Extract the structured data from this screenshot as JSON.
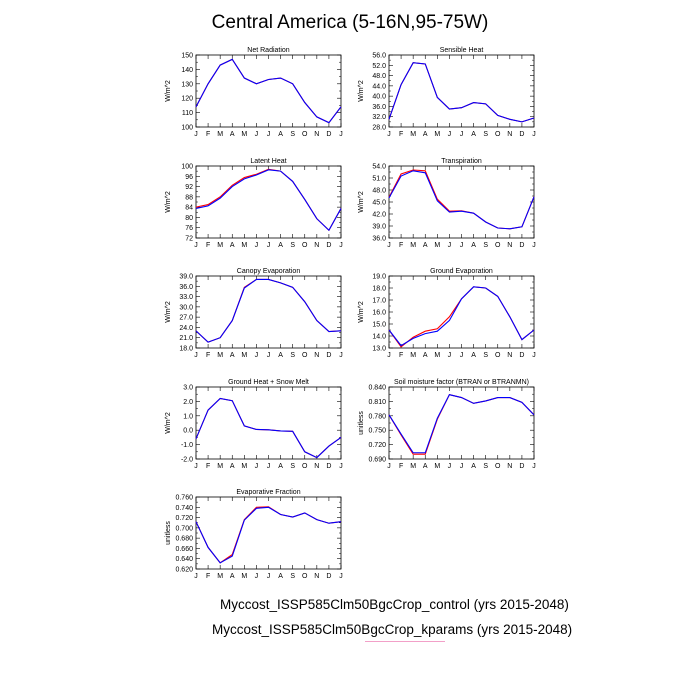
{
  "figure": {
    "title": "Central America (5-16N,95-75W)",
    "legend": [
      {
        "label": "Myccost_ISSP585Clm50BgcCrop_control (yrs 2015-2048)",
        "color": "#0000ff"
      },
      {
        "label": "Myccost_ISSP585Clm50BgcCrop_kparams (yrs 2015-2048)",
        "color": "#ff0000"
      }
    ]
  },
  "chart_data": [
    {
      "type": "line",
      "title": "Net Radiation",
      "ylabel": "W/m^2",
      "categories": [
        "J",
        "F",
        "M",
        "A",
        "M",
        "J",
        "J",
        "A",
        "S",
        "O",
        "N",
        "D",
        "J"
      ],
      "yticks": [
        "100",
        "110",
        "120",
        "130",
        "140",
        "150"
      ],
      "ylim": [
        100,
        150
      ],
      "series": [
        {
          "color": "#0000ff",
          "values": [
            114,
            130,
            143,
            147,
            134,
            130,
            133,
            134,
            130,
            117,
            107,
            103,
            114
          ]
        },
        {
          "color": "#ff0000",
          "values": [
            114,
            130,
            143,
            147,
            134,
            130,
            133,
            134,
            130,
            117,
            107,
            103,
            114
          ]
        }
      ]
    },
    {
      "type": "line",
      "title": "Sensible Heat",
      "ylabel": "W/m^2",
      "categories": [
        "J",
        "F",
        "M",
        "A",
        "M",
        "J",
        "J",
        "A",
        "S",
        "O",
        "N",
        "D",
        "J"
      ],
      "yticks": [
        "28.0",
        "32.0",
        "36.0",
        "40.0",
        "44.0",
        "48.0",
        "52.0",
        "56.0"
      ],
      "ylim": [
        28,
        56
      ],
      "series": [
        {
          "color": "#0000ff",
          "values": [
            31,
            44.5,
            53,
            52.5,
            39.5,
            35,
            35.5,
            37.5,
            37,
            32.5,
            31,
            30,
            31.5
          ]
        },
        {
          "color": "#ff0000",
          "values": [
            31,
            44.5,
            53,
            52.5,
            39.5,
            35,
            35.5,
            37.5,
            37,
            32.5,
            31,
            30,
            31.5
          ]
        }
      ]
    },
    {
      "type": "line",
      "title": "Latent Heat",
      "ylabel": "W/m^2",
      "categories": [
        "J",
        "F",
        "M",
        "A",
        "M",
        "J",
        "J",
        "A",
        "S",
        "O",
        "N",
        "D",
        "J"
      ],
      "yticks": [
        "72",
        "76",
        "80",
        "84",
        "88",
        "92",
        "96",
        "100"
      ],
      "ylim": [
        72,
        100
      ],
      "series": [
        {
          "color": "#0000ff",
          "values": [
            83.5,
            84.5,
            87.5,
            92,
            95,
            96.5,
            98.5,
            98,
            94,
            87,
            79.5,
            75,
            83.5
          ]
        },
        {
          "color": "#ff0000",
          "values": [
            84,
            85,
            88,
            92.5,
            95.5,
            96.8,
            98.7,
            98,
            94,
            87,
            79.5,
            75,
            83.5
          ]
        }
      ]
    },
    {
      "type": "line",
      "title": "Transpiration",
      "ylabel": "W/m^2",
      "categories": [
        "J",
        "F",
        "M",
        "A",
        "M",
        "J",
        "J",
        "A",
        "S",
        "O",
        "N",
        "D",
        "J"
      ],
      "yticks": [
        "36.0",
        "39.0",
        "42.0",
        "45.0",
        "48.0",
        "51.0",
        "54.0"
      ],
      "ylim": [
        36,
        54
      ],
      "series": [
        {
          "color": "#0000ff",
          "values": [
            46,
            51.5,
            52.8,
            52.3,
            45.3,
            42.5,
            42.7,
            42.2,
            40,
            38.5,
            38.3,
            38.8,
            46.3
          ]
        },
        {
          "color": "#ff0000",
          "values": [
            46.2,
            52,
            53,
            52.8,
            45.7,
            42.7,
            42.8,
            42.2,
            40,
            38.5,
            38.3,
            38.8,
            46.3
          ]
        }
      ]
    },
    {
      "type": "line",
      "title": "Canopy Evaporation",
      "ylabel": "W/m^2",
      "categories": [
        "J",
        "F",
        "M",
        "A",
        "M",
        "J",
        "J",
        "A",
        "S",
        "O",
        "N",
        "D",
        "J"
      ],
      "yticks": [
        "18.0",
        "21.0",
        "24.0",
        "27.0",
        "30.0",
        "33.0",
        "36.0",
        "39.0"
      ],
      "ylim": [
        18,
        39
      ],
      "series": [
        {
          "color": "#0000ff",
          "values": [
            23,
            19.7,
            21,
            26,
            35.5,
            38,
            38,
            37,
            35.7,
            31.5,
            26,
            22.8,
            23
          ]
        },
        {
          "color": "#ff0000",
          "values": [
            23,
            19.7,
            21,
            26,
            35.7,
            38,
            38,
            37,
            35.7,
            31.5,
            26,
            22.8,
            23
          ]
        }
      ]
    },
    {
      "type": "line",
      "title": "Ground Evaporation",
      "ylabel": "W/m^2",
      "categories": [
        "J",
        "F",
        "M",
        "A",
        "M",
        "J",
        "J",
        "A",
        "S",
        "O",
        "N",
        "D",
        "J"
      ],
      "yticks": [
        "13.0",
        "14.0",
        "15.0",
        "16.0",
        "17.0",
        "18.0",
        "19.0"
      ],
      "ylim": [
        13,
        19
      ],
      "series": [
        {
          "color": "#0000ff",
          "values": [
            14.5,
            13.2,
            13.8,
            14.2,
            14.4,
            15.3,
            17.1,
            18.1,
            18,
            17.3,
            15.6,
            13.7,
            14.5
          ]
        },
        {
          "color": "#ff0000",
          "values": [
            14.5,
            13.1,
            13.9,
            14.4,
            14.6,
            15.6,
            17.1,
            18.1,
            18,
            17.3,
            15.6,
            13.7,
            14.5
          ]
        }
      ]
    },
    {
      "type": "line",
      "title": "Ground Heat + Snow Melt",
      "ylabel": "W/m^2",
      "categories": [
        "J",
        "F",
        "M",
        "A",
        "M",
        "J",
        "J",
        "A",
        "S",
        "O",
        "N",
        "D",
        "J"
      ],
      "yticks": [
        "-2.0",
        "-1.0",
        "0.0",
        "1.0",
        "2.0",
        "3.0"
      ],
      "ylim": [
        -2,
        3
      ],
      "series": [
        {
          "color": "#0000ff",
          "values": [
            -0.6,
            1.4,
            2.2,
            2.05,
            0.3,
            0.05,
            0.03,
            -0.05,
            -0.08,
            -1.5,
            -1.9,
            -1.1,
            -0.5
          ]
        },
        {
          "color": "#ff0000",
          "values": [
            -0.6,
            1.4,
            2.2,
            2.05,
            0.3,
            0.05,
            0.03,
            -0.05,
            -0.08,
            -1.5,
            -1.9,
            -1.1,
            -0.5
          ]
        }
      ]
    },
    {
      "type": "line",
      "title": "Soil moisture factor (BTRAN or BTRANMN)",
      "ylabel": "unitless",
      "categories": [
        "J",
        "F",
        "M",
        "A",
        "M",
        "J",
        "J",
        "A",
        "S",
        "O",
        "N",
        "D",
        "J"
      ],
      "yticks": [
        "0.690",
        "0.720",
        "0.750",
        "0.780",
        "0.810",
        "0.840"
      ],
      "ylim": [
        0.69,
        0.84
      ],
      "series": [
        {
          "color": "#0000ff",
          "values": [
            0.782,
            0.742,
            0.703,
            0.703,
            0.775,
            0.824,
            0.818,
            0.806,
            0.811,
            0.818,
            0.818,
            0.808,
            0.782
          ]
        },
        {
          "color": "#ff0000",
          "values": [
            0.782,
            0.74,
            0.7,
            0.7,
            0.773,
            0.824,
            0.818,
            0.806,
            0.811,
            0.818,
            0.818,
            0.808,
            0.782
          ]
        }
      ]
    },
    {
      "type": "line",
      "title": "Evaporative Fraction",
      "ylabel": "unitless",
      "categories": [
        "J",
        "F",
        "M",
        "A",
        "M",
        "J",
        "J",
        "A",
        "S",
        "O",
        "N",
        "D",
        "J"
      ],
      "yticks": [
        "0.620",
        "0.640",
        "0.660",
        "0.680",
        "0.700",
        "0.720",
        "0.740",
        "0.760"
      ],
      "ylim": [
        0.62,
        0.76
      ],
      "series": [
        {
          "color": "#0000ff",
          "values": [
            0.712,
            0.662,
            0.632,
            0.645,
            0.715,
            0.738,
            0.74,
            0.726,
            0.721,
            0.729,
            0.716,
            0.709,
            0.712
          ]
        },
        {
          "color": "#ff0000",
          "values": [
            0.712,
            0.662,
            0.632,
            0.648,
            0.716,
            0.74,
            0.741,
            0.726,
            0.721,
            0.729,
            0.716,
            0.709,
            0.712
          ]
        }
      ]
    }
  ]
}
